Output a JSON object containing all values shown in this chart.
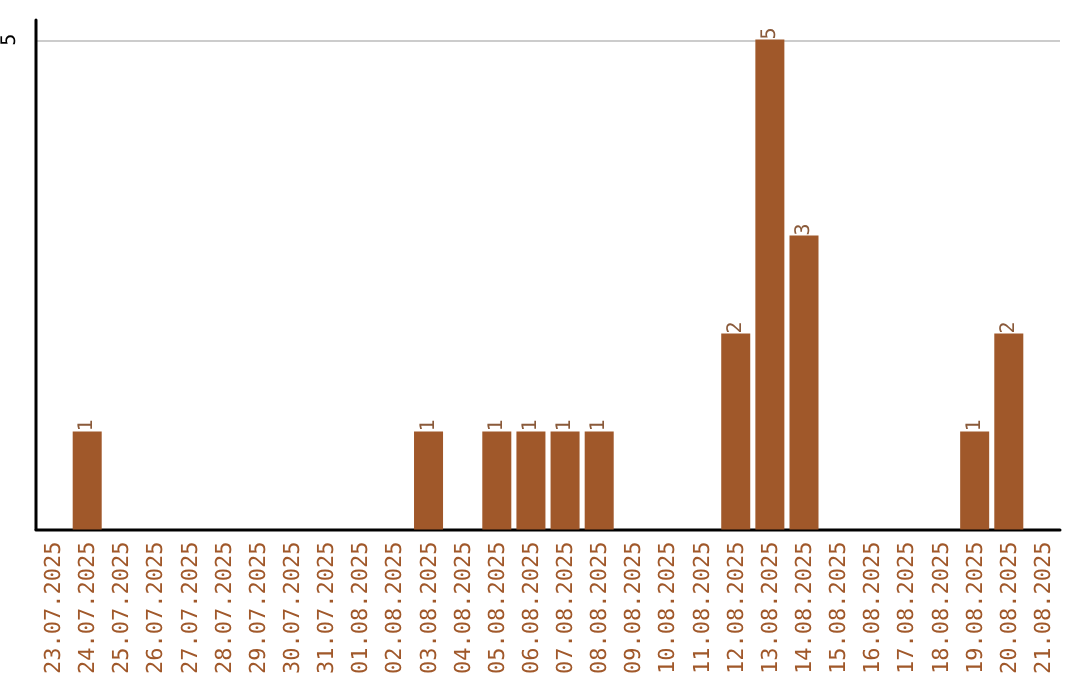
{
  "chart_data": {
    "type": "bar",
    "categories": [
      "23.07.2025",
      "24.07.2025",
      "25.07.2025",
      "26.07.2025",
      "27.07.2025",
      "28.07.2025",
      "29.07.2025",
      "30.07.2025",
      "31.07.2025",
      "01.08.2025",
      "02.08.2025",
      "03.08.2025",
      "04.08.2025",
      "05.08.2025",
      "06.08.2025",
      "07.08.2025",
      "08.08.2025",
      "09.08.2025",
      "10.08.2025",
      "11.08.2025",
      "12.08.2025",
      "13.08.2025",
      "14.08.2025",
      "15.08.2025",
      "16.08.2025",
      "17.08.2025",
      "18.08.2025",
      "19.08.2025",
      "20.08.2025",
      "21.08.2025"
    ],
    "values": [
      0,
      1,
      0,
      0,
      0,
      0,
      0,
      0,
      0,
      0,
      0,
      1,
      0,
      1,
      1,
      1,
      1,
      0,
      0,
      0,
      2,
      5,
      3,
      0,
      0,
      0,
      0,
      1,
      2,
      0
    ],
    "value_labels": [
      null,
      "1",
      null,
      null,
      null,
      null,
      null,
      null,
      null,
      null,
      null,
      "1",
      null,
      "1",
      "1",
      "1",
      "1",
      null,
      null,
      null,
      "2",
      "5",
      "3",
      null,
      null,
      null,
      null,
      "1",
      "2",
      null
    ],
    "color": "#a0582a",
    "ylim": [
      0,
      5.2
    ],
    "yticks": [
      5
    ],
    "grid": "y"
  }
}
